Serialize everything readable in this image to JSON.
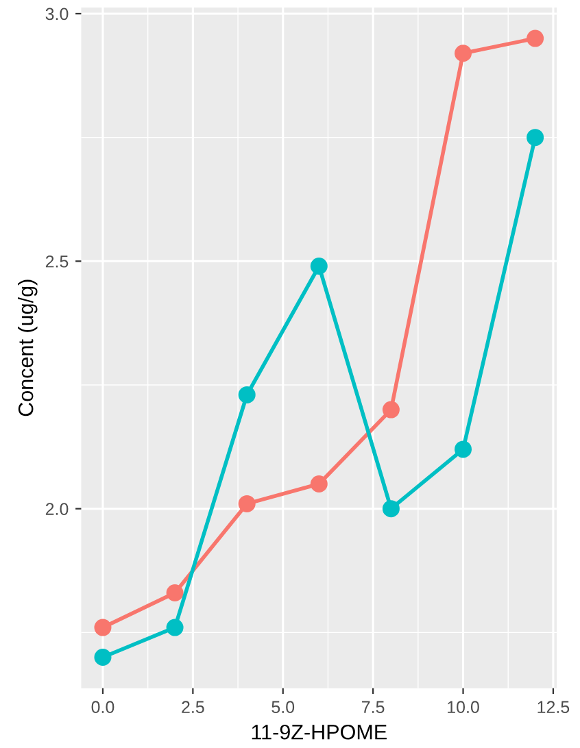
{
  "chart_data": {
    "type": "line",
    "xlabel": "11-9Z-HPOME",
    "ylabel": "Concent (ug/g)",
    "x": [
      0,
      2,
      4,
      6,
      8,
      10,
      12
    ],
    "series": [
      {
        "color": "#f8766d",
        "values": [
          1.76,
          1.83,
          2.01,
          2.05,
          2.2,
          2.92,
          2.95
        ]
      },
      {
        "color": "#00bfc4",
        "values": [
          1.7,
          1.76,
          2.23,
          2.49,
          2.0,
          2.12,
          2.75
        ]
      }
    ],
    "xlim": [
      -0.6,
      12.6
    ],
    "ylim": [
      1.6375,
      3.0125
    ],
    "xticks": [
      {
        "value": 0,
        "label": "0.0"
      },
      2.5,
      {
        "value": 5,
        "label": "5.0"
      },
      7.5,
      {
        "value": 10,
        "label": "10.0"
      },
      12.5
    ],
    "yticks": [
      {
        "value": 2,
        "label": "2.0"
      },
      2.5,
      {
        "value": 3,
        "label": "3.0"
      }
    ],
    "grid": true,
    "marker": "circle",
    "line_style": "solid"
  }
}
